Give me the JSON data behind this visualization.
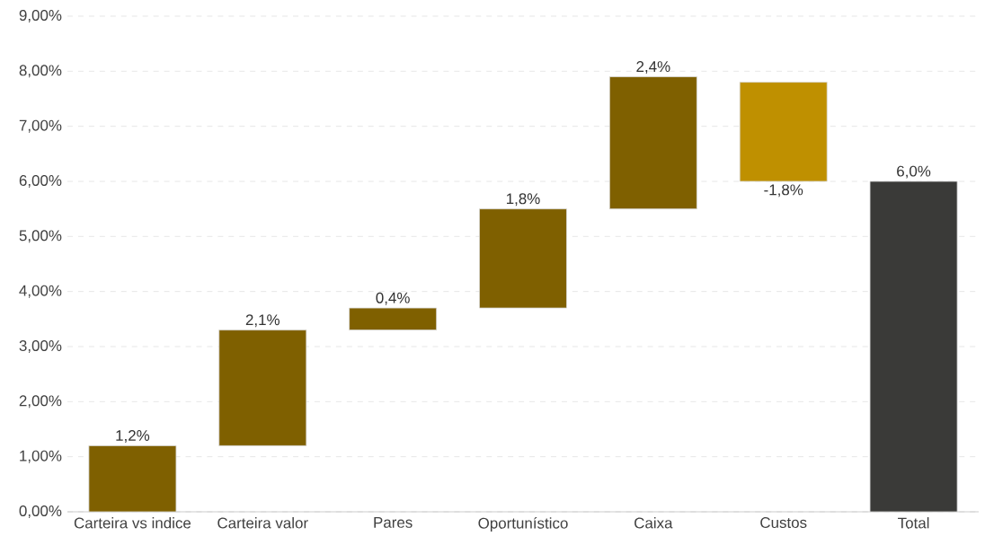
{
  "chart_data": {
    "type": "bar",
    "categories": [
      "Carteira vs indice",
      "Carteira valor",
      "Pares",
      "Oportunístico",
      "Caixa",
      "Custos",
      "Total"
    ],
    "values": [
      1.2,
      2.1,
      0.4,
      1.8,
      2.4,
      -1.8,
      6.0
    ],
    "base": [
      0,
      1.2,
      3.3,
      3.7,
      5.5,
      7.8,
      0
    ],
    "colors": [
      "#7f6000",
      "#7f6000",
      "#7f6000",
      "#7f6000",
      "#7f6000",
      "#bf9000",
      "#3a3a38"
    ],
    "value_labels": [
      "1,2%",
      "2,1%",
      "0,4%",
      "1,8%",
      "2,4%",
      "-1,8%",
      "6,0%"
    ],
    "ylim": [
      0,
      9
    ],
    "yticks": [
      {
        "value": 0,
        "label": "0,00%"
      },
      {
        "value": 1,
        "label": "1,00%"
      },
      {
        "value": 2,
        "label": "2,00%"
      },
      {
        "value": 3,
        "label": "3,00%"
      },
      {
        "value": 4,
        "label": "4,00%"
      },
      {
        "value": 5,
        "label": "5,00%"
      },
      {
        "value": 6,
        "label": "6,00%"
      },
      {
        "value": 7,
        "label": "7,00%"
      },
      {
        "value": 8,
        "label": "8,00%"
      },
      {
        "value": 9,
        "label": "9,00%"
      }
    ],
    "grid": "y"
  }
}
